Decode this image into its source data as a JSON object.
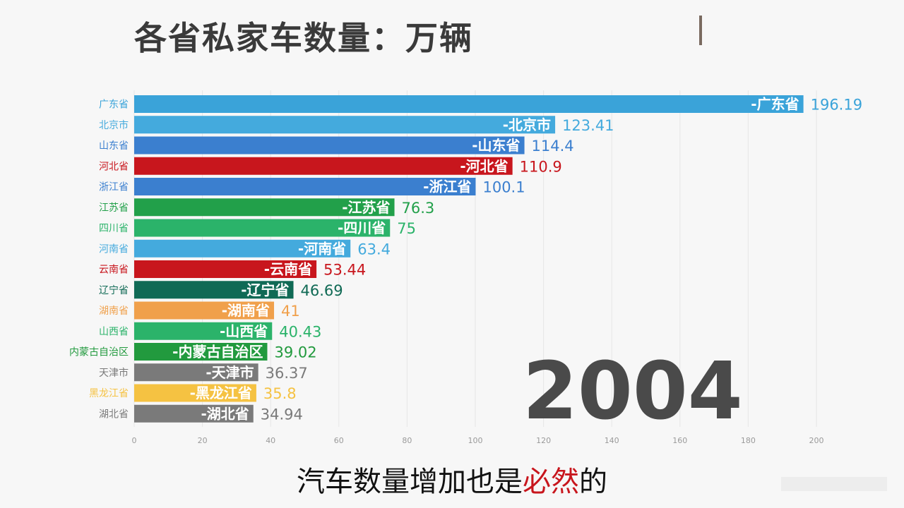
{
  "title": "各省私家车数量：万辆",
  "year": "2004",
  "subtitle": {
    "before": "汽车数量增加也是",
    "emphasis": "必然",
    "after": "的"
  },
  "chart_data": {
    "type": "bar",
    "orientation": "horizontal",
    "title": "各省私家车数量：万辆",
    "categories": [
      "广东省",
      "北京市",
      "山东省",
      "河北省",
      "浙江省",
      "江苏省",
      "四川省",
      "河南省",
      "云南省",
      "辽宁省",
      "湖南省",
      "山西省",
      "内蒙古自治区",
      "天津市",
      "黑龙江省",
      "湖北省"
    ],
    "values": [
      196.19,
      123.41,
      114.4,
      110.9,
      100.1,
      76.3,
      75,
      63.4,
      53.44,
      46.69,
      41,
      40.43,
      39.02,
      36.37,
      35.8,
      34.94
    ],
    "value_labels": [
      "196.19",
      "123.41",
      "114.4",
      "110.9",
      "100.1",
      "76.3",
      "75",
      "63.4",
      "53.44",
      "46.69",
      "41",
      "40.43",
      "39.02",
      "36.37",
      "35.8",
      "34.94"
    ],
    "colors": [
      "#3aa3d9",
      "#44aadd",
      "#3b7fcf",
      "#c8161d",
      "#3b7fcf",
      "#22a04a",
      "#2bb36a",
      "#44aadd",
      "#c8161d",
      "#106a55",
      "#f0a04b",
      "#2bb36a",
      "#229a3e",
      "#7a7a7a",
      "#f5c242",
      "#7a7a7a"
    ],
    "xlim": [
      0,
      200
    ],
    "xticks": [
      0,
      20,
      40,
      60,
      80,
      100,
      120,
      140,
      160,
      180,
      200
    ],
    "grid": true
  }
}
